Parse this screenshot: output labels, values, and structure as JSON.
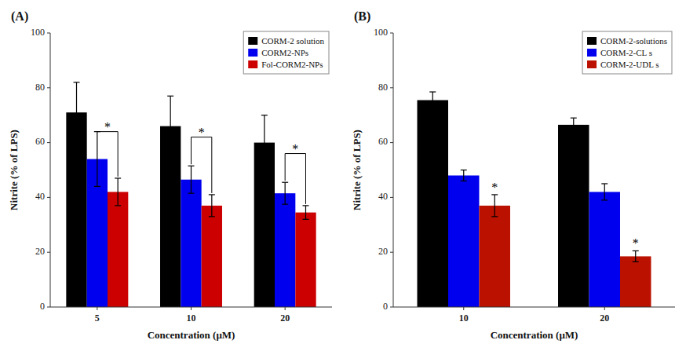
{
  "chart_data": [
    {
      "type": "bar",
      "title": "(A)",
      "categories": [
        "5",
        "10",
        "20"
      ],
      "series": [
        {
          "name": "CORM-2 solution",
          "color": "#000000",
          "values": [
            71,
            66,
            60
          ],
          "errors": [
            11,
            11,
            10
          ]
        },
        {
          "name": "CORM2-NPs",
          "color": "#0000EE",
          "values": [
            54,
            46.5,
            41.5
          ],
          "errors": [
            10,
            5,
            4
          ]
        },
        {
          "name": "Fol-CORM2-NPs",
          "color": "#CC0000",
          "values": [
            42,
            37,
            34.5
          ],
          "errors": [
            5,
            4,
            2.5
          ]
        }
      ],
      "xlabel": "Concentration (μM)",
      "ylabel": "Nitrite (% of LPS)",
      "ylim": [
        0,
        100
      ],
      "yticks": [
        0,
        20,
        40,
        60,
        80,
        100
      ],
      "grid": false,
      "legend": "upper right",
      "annotations": [
        {
          "text": "*",
          "category": 0,
          "series": [
            1,
            2
          ],
          "y": 64
        },
        {
          "text": "*",
          "category": 1,
          "series": [
            1,
            2
          ],
          "y": 62
        },
        {
          "text": "*",
          "category": 2,
          "series": [
            1,
            2
          ],
          "y": 56
        }
      ]
    },
    {
      "type": "bar",
      "title": "(B)",
      "categories": [
        "10",
        "20"
      ],
      "series": [
        {
          "name": "CORM-2-solutions",
          "color": "#000000",
          "values": [
            75.5,
            66.5
          ],
          "errors": [
            3,
            2.5
          ]
        },
        {
          "name": "CORM-2-CL s",
          "color": "#0000EE",
          "values": [
            48,
            42
          ],
          "errors": [
            2,
            3
          ]
        },
        {
          "name": "CORM-2-UDL s",
          "color": "#BB1100",
          "values": [
            37,
            18.5
          ],
          "errors": [
            4,
            2
          ]
        }
      ],
      "xlabel": "Concentration (μM)",
      "ylabel": "Nitrite (% of LPS)",
      "ylim": [
        0,
        100
      ],
      "yticks": [
        0,
        20,
        40,
        60,
        80,
        100
      ],
      "grid": false,
      "legend": "upper right",
      "annotations": [
        {
          "text": "*",
          "category": 0,
          "series": [
            2
          ]
        },
        {
          "text": "*",
          "category": 1,
          "series": [
            2
          ]
        }
      ]
    }
  ]
}
